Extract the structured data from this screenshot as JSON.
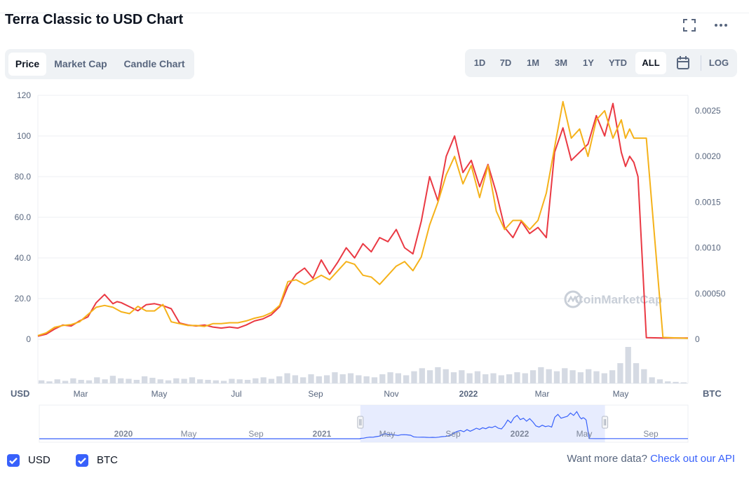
{
  "header": {
    "title": "Terra Classic to USD Chart"
  },
  "tabs": [
    {
      "label": "Price",
      "active": true
    },
    {
      "label": "Market Cap",
      "active": false
    },
    {
      "label": "Candle Chart",
      "active": false
    }
  ],
  "ranges": [
    {
      "label": "1D",
      "active": false
    },
    {
      "label": "7D",
      "active": false
    },
    {
      "label": "1M",
      "active": false
    },
    {
      "label": "3M",
      "active": false
    },
    {
      "label": "1Y",
      "active": false
    },
    {
      "label": "YTD",
      "active": false
    },
    {
      "label": "ALL",
      "active": true
    }
  ],
  "log_label": "LOG",
  "icons": {
    "fullscreen": "fullscreen-icon",
    "more": "more-options-icon",
    "calendar": "calendar-icon"
  },
  "colors": {
    "usd_line": "#ea3943",
    "btc_line": "#f5b21a",
    "navigator": "#3861fb",
    "accent": "#3861fb"
  },
  "watermark": "CoinMarketCap",
  "chart_data": {
    "type": "line",
    "x_tick_labels": [
      "Mar",
      "May",
      "Jul",
      "Sep",
      "Nov",
      "2022",
      "Mar",
      "May"
    ],
    "y_left_ticks": [
      "120",
      "100",
      "80.0",
      "60.0",
      "40.0",
      "20.0",
      "0"
    ],
    "y_right_ticks": [
      "0.0025",
      "0.0020",
      "0.0015",
      "0.0010",
      "0.00050",
      "0"
    ],
    "y_left_label": "USD",
    "y_right_label": "BTC",
    "y_left_range": [
      0,
      120
    ],
    "y_right_range": [
      0,
      0.0025
    ],
    "grid": true,
    "series": [
      {
        "name": "USD",
        "axis": "left",
        "color": "#ea3943",
        "x": [
          0,
          2,
          4,
          6,
          8,
          10,
          12,
          14,
          16,
          18,
          19,
          20,
          22,
          24,
          26,
          28,
          30,
          32,
          34,
          36,
          38,
          40,
          42,
          44,
          46,
          48,
          50,
          52,
          54,
          56,
          58,
          60,
          62,
          64,
          66,
          68,
          70,
          72,
          74,
          76,
          78,
          80,
          82,
          84,
          86,
          88,
          90,
          92,
          94,
          96,
          98,
          100,
          102,
          104,
          106,
          108,
          110,
          112,
          114,
          116,
          118,
          120,
          122,
          124,
          126,
          128,
          130,
          132,
          134,
          136,
          138,
          140,
          141,
          142,
          143,
          144,
          146,
          150,
          156
        ],
        "values": [
          1.5,
          2.5,
          5,
          7,
          6.5,
          9,
          11,
          18,
          22,
          17.5,
          18.5,
          18,
          16,
          14,
          17,
          17.5,
          16.5,
          15,
          8,
          7,
          6.5,
          7,
          6,
          5.5,
          6,
          5.5,
          7,
          9,
          10,
          12,
          16,
          26,
          32,
          35,
          30,
          39,
          32,
          38,
          45,
          40,
          47,
          43,
          50,
          48,
          54,
          45,
          42,
          58,
          80,
          68,
          90,
          100,
          82,
          88,
          75,
          86,
          72,
          55,
          50,
          58,
          52,
          55,
          50,
          92,
          104,
          88,
          92,
          96,
          110,
          100,
          116,
          92,
          85,
          90,
          87,
          80,
          0.8,
          0.6,
          0.6
        ]
      },
      {
        "name": "BTC",
        "axis": "right",
        "color": "#f5b21a",
        "x": [
          0,
          2,
          4,
          6,
          8,
          10,
          12,
          14,
          16,
          18,
          20,
          22,
          24,
          26,
          28,
          30,
          32,
          34,
          36,
          38,
          40,
          42,
          44,
          46,
          48,
          50,
          52,
          54,
          56,
          58,
          60,
          62,
          64,
          66,
          68,
          70,
          72,
          74,
          76,
          78,
          80,
          82,
          84,
          86,
          88,
          90,
          92,
          94,
          96,
          98,
          100,
          102,
          104,
          106,
          108,
          110,
          112,
          114,
          116,
          118,
          120,
          122,
          124,
          126,
          128,
          130,
          132,
          134,
          136,
          138,
          140,
          141,
          142,
          143,
          144,
          146,
          150,
          156
        ],
        "values": [
          4e-05,
          7e-05,
          0.00013,
          0.00015,
          0.00016,
          0.00019,
          0.00027,
          0.00035,
          0.00037,
          0.00035,
          0.0003,
          0.00028,
          0.00036,
          0.00031,
          0.00031,
          0.00038,
          0.00019,
          0.00017,
          0.00015,
          0.00015,
          0.00014,
          0.00017,
          0.00017,
          0.00018,
          0.00018,
          0.0002,
          0.00023,
          0.00025,
          0.00029,
          0.00037,
          0.00063,
          0.00065,
          0.0006,
          0.00065,
          0.0007,
          0.00065,
          0.00075,
          0.00085,
          0.00082,
          0.0007,
          0.00068,
          0.0006,
          0.0007,
          0.0008,
          0.00085,
          0.00075,
          0.0009,
          0.00125,
          0.0015,
          0.0018,
          0.002,
          0.0017,
          0.0019,
          0.00155,
          0.0019,
          0.0014,
          0.0012,
          0.0013,
          0.0013,
          0.0012,
          0.0013,
          0.0016,
          0.0021,
          0.0026,
          0.0022,
          0.0023,
          0.002,
          0.0024,
          0.0025,
          0.0022,
          0.0024,
          0.0022,
          0.0023,
          0.0022,
          0.0022,
          0.0022,
          2e-05,
          1e-05
        ]
      }
    ],
    "volume": [
      6,
      4,
      8,
      5,
      10,
      7,
      6,
      12,
      8,
      15,
      10,
      9,
      7,
      14,
      11,
      8,
      6,
      10,
      9,
      12,
      8,
      7,
      6,
      5,
      9,
      8,
      7,
      10,
      12,
      9,
      14,
      20,
      16,
      12,
      18,
      14,
      16,
      22,
      18,
      20,
      16,
      14,
      12,
      18,
      22,
      20,
      16,
      24,
      30,
      26,
      32,
      28,
      22,
      26,
      20,
      24,
      18,
      20,
      16,
      18,
      22,
      20,
      26,
      32,
      28,
      24,
      30,
      26,
      22,
      28,
      24,
      20,
      26,
      40,
      72,
      40,
      28,
      12,
      8,
      4,
      3,
      2
    ],
    "navigator": {
      "x_tick_labels": [
        "2020",
        "May",
        "Sep",
        "2021",
        "May",
        "Sep",
        "2022",
        "May",
        "Sep"
      ],
      "selection_start": 0.495,
      "selection_end": 0.872
    }
  },
  "legend": {
    "usd_label": "USD",
    "btc_label": "BTC"
  },
  "footer": {
    "prompt": "Want more data?",
    "link": "Check out our API"
  }
}
